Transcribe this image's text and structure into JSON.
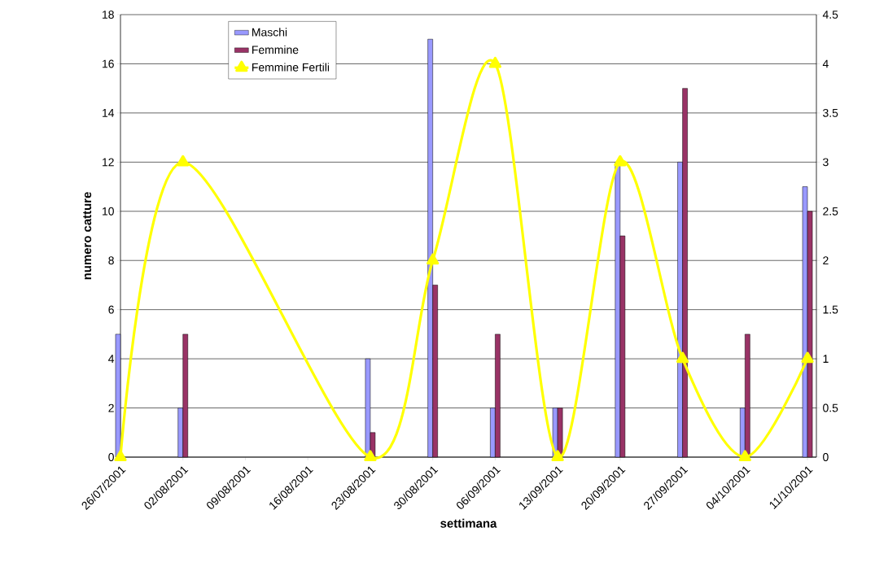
{
  "chart_data": {
    "type": "bar",
    "xlabel": "settimana",
    "ylabel": "numero catture",
    "x": [
      "2001-07-26",
      "2001-08-02",
      "2001-08-23",
      "2001-08-30",
      "2001-09-06",
      "2001-09-13",
      "2001-09-20",
      "2001-09-27",
      "2001-10-04",
      "2001-10-11"
    ],
    "series": [
      {
        "name": "Maschi",
        "color": "#9999ff",
        "values": [
          5,
          2,
          4,
          17,
          2,
          2,
          12,
          12,
          2,
          11
        ]
      },
      {
        "name": "Femmine",
        "color": "#993366",
        "values": [
          0,
          5,
          1,
          7,
          5,
          2,
          9,
          15,
          5,
          10
        ]
      },
      {
        "name": "Femmine Fertili",
        "type": "line",
        "axis": "y2",
        "color": "#ffff00",
        "marker": "triangle",
        "values": [
          0,
          3,
          0,
          2,
          4,
          0,
          3,
          1,
          0,
          1
        ]
      }
    ],
    "xlim": [
      "2001-07-26",
      "2001-10-12"
    ],
    "xticks": [
      {
        "value": "2001-07-26",
        "label": "26/07/2001"
      },
      {
        "value": "2001-08-02",
        "label": "02/08/2001"
      },
      {
        "value": "2001-08-09",
        "label": "09/08/2001"
      },
      {
        "value": "2001-08-16",
        "label": "16/08/2001"
      },
      {
        "value": "2001-08-23",
        "label": "23/08/2001"
      },
      {
        "value": "2001-08-30",
        "label": "30/08/2001"
      },
      {
        "value": "2001-09-06",
        "label": "06/09/2001"
      },
      {
        "value": "2001-09-13",
        "label": "13/09/2001"
      },
      {
        "value": "2001-09-20",
        "label": "20/09/2001"
      },
      {
        "value": "2001-09-27",
        "label": "27/09/2001"
      },
      {
        "value": "2001-10-04",
        "label": "04/10/2001"
      },
      {
        "value": "2001-10-11",
        "label": "11/10/2001"
      }
    ],
    "ylim": [
      0,
      18
    ],
    "yticks": [
      0,
      2,
      4,
      6,
      8,
      10,
      12,
      14,
      16,
      18
    ],
    "y2lim": [
      0,
      4.5
    ],
    "y2ticks": [
      0,
      0.5,
      1,
      1.5,
      2,
      2.5,
      3,
      3.5,
      4,
      4.5
    ],
    "grid": "y",
    "legend": "top left"
  }
}
